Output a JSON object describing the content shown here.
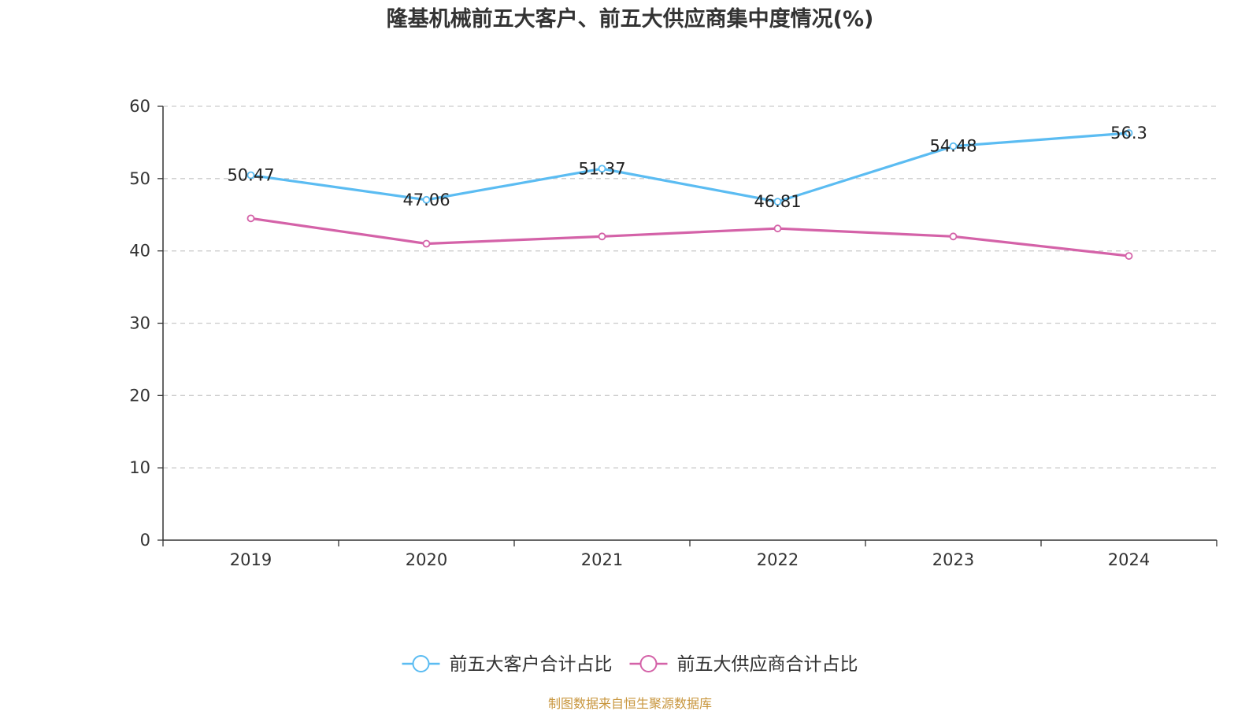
{
  "chart_data": {
    "type": "line",
    "title": "隆基机械前五大客户、前五大供应商集中度情况(%)",
    "categories": [
      "2019",
      "2020",
      "2021",
      "2022",
      "2023",
      "2024"
    ],
    "ylim": [
      0,
      60
    ],
    "yticks": [
      0,
      10,
      20,
      30,
      40,
      50,
      60
    ],
    "grid": true,
    "legend_position": "bottom-center",
    "series": [
      {
        "name": "前五大客户合计占比",
        "color": "#5bbcf2",
        "values": [
          50.47,
          47.06,
          51.37,
          46.81,
          54.48,
          56.3
        ],
        "data_labels": [
          "50.47",
          "47.06",
          "51.37",
          "46.81",
          "54.48",
          "56.3"
        ]
      },
      {
        "name": "前五大供应商合计占比",
        "color": "#d462a8",
        "values": [
          44.5,
          41.0,
          42.0,
          43.1,
          42.0,
          39.3
        ],
        "data_labels": []
      }
    ]
  },
  "source": "制图数据来自恒生聚源数据库"
}
